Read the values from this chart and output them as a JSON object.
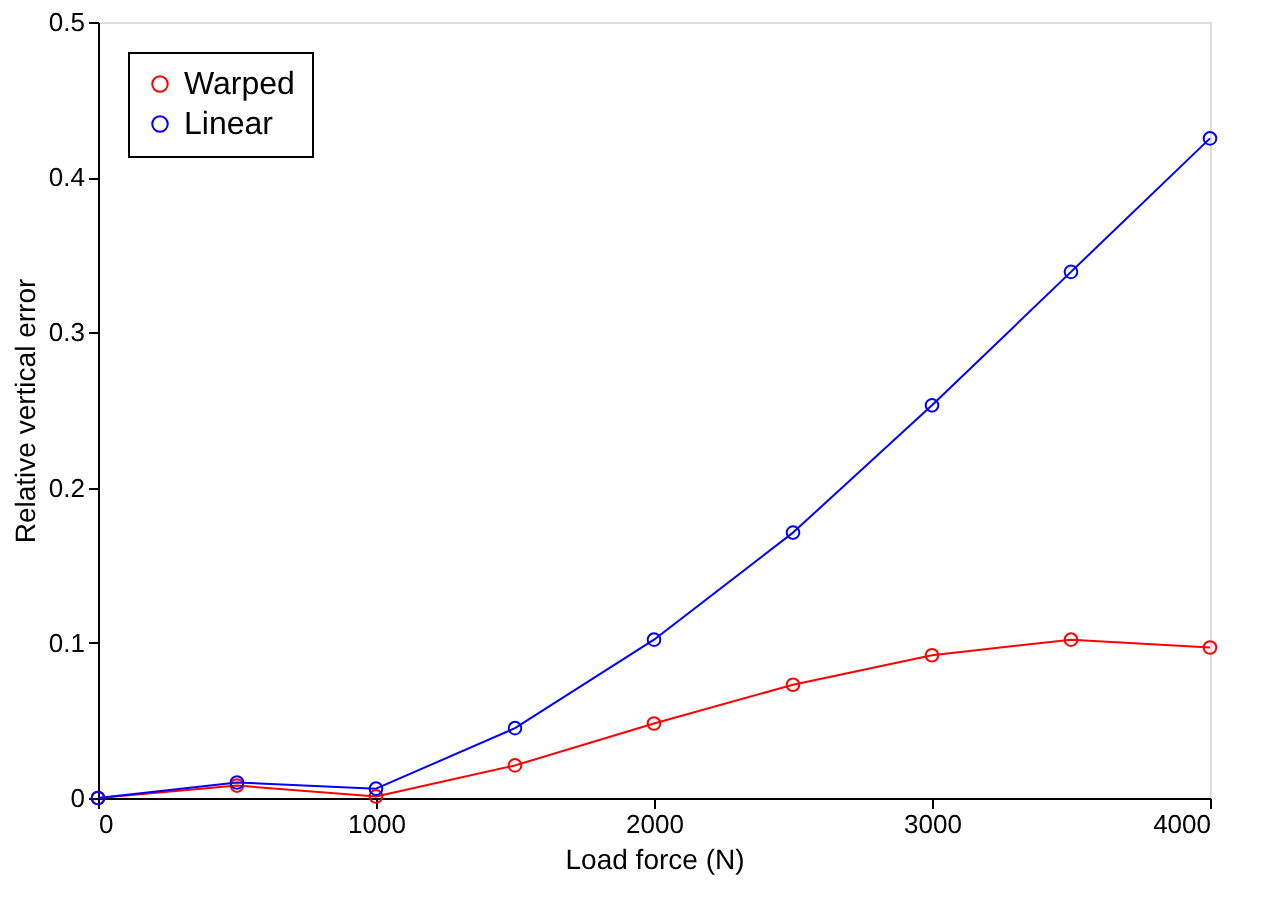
{
  "chart_data": {
    "type": "line",
    "xlabel": "Load force (N)",
    "ylabel": "Relative vertical error",
    "x": [
      0,
      500,
      1000,
      1500,
      2000,
      2500,
      3000,
      3500,
      4000
    ],
    "series": [
      {
        "name": "Warped",
        "color": "#ff0000",
        "values": [
          0,
          0.008,
          0.001,
          0.021,
          0.048,
          0.073,
          0.092,
          0.102,
          0.097
        ]
      },
      {
        "name": "Linear",
        "color": "#0000ff",
        "values": [
          0,
          0.01,
          0.006,
          0.045,
          0.102,
          0.171,
          0.253,
          0.339,
          0.425
        ]
      }
    ],
    "xlim": [
      0,
      4000
    ],
    "xticks": [
      0,
      1000,
      2000,
      3000,
      4000
    ],
    "ylim": [
      0,
      0.5
    ],
    "yticks": [
      0,
      0.1,
      0.2,
      0.3,
      0.4,
      0.5
    ],
    "grid": false,
    "legend": "top left",
    "marker": "circle",
    "line_style": "solid"
  }
}
